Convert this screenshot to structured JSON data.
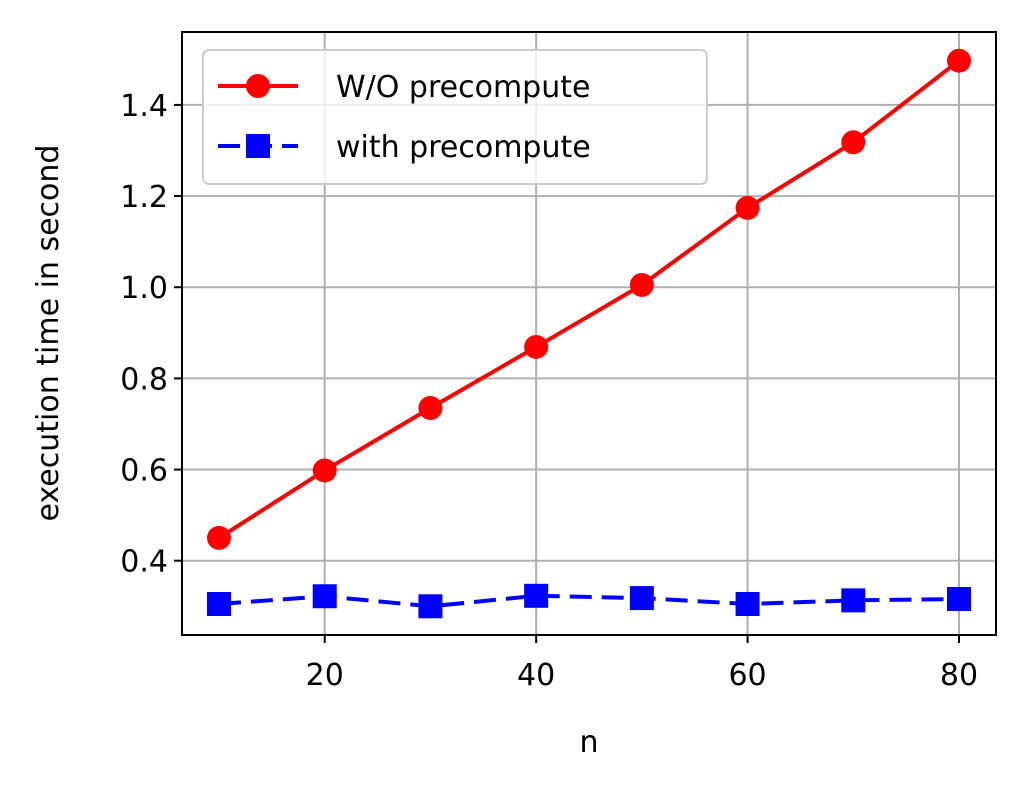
{
  "chart_data": {
    "type": "line",
    "title": "",
    "xlabel": "n",
    "ylabel": "execution time in second",
    "x": [
      10,
      20,
      30,
      40,
      50,
      60,
      70,
      80
    ],
    "xlim": [
      6.5,
      83.5
    ],
    "ylim": [
      0.237,
      1.56
    ],
    "xticks": [
      20,
      40,
      60,
      80
    ],
    "xtick_labels": [
      "20",
      "40",
      "60",
      "80"
    ],
    "yticks": [
      0.4,
      0.6,
      0.8,
      1.0,
      1.2,
      1.4
    ],
    "ytick_labels": [
      "0.4",
      "0.6",
      "0.8",
      "1.0",
      "1.2",
      "1.4"
    ],
    "grid": true,
    "legend_position": "top-left",
    "series": [
      {
        "name": "W/O precompute",
        "values": [
          0.45,
          0.598,
          0.735,
          0.869,
          1.005,
          1.174,
          1.318,
          1.497
        ],
        "color": "#ff0000",
        "marker": "circle",
        "linestyle": "solid"
      },
      {
        "name": "with precompute",
        "values": [
          0.305,
          0.322,
          0.3,
          0.323,
          0.318,
          0.305,
          0.313,
          0.316
        ],
        "color": "#0000ff",
        "marker": "square",
        "linestyle": "dashed"
      }
    ]
  }
}
